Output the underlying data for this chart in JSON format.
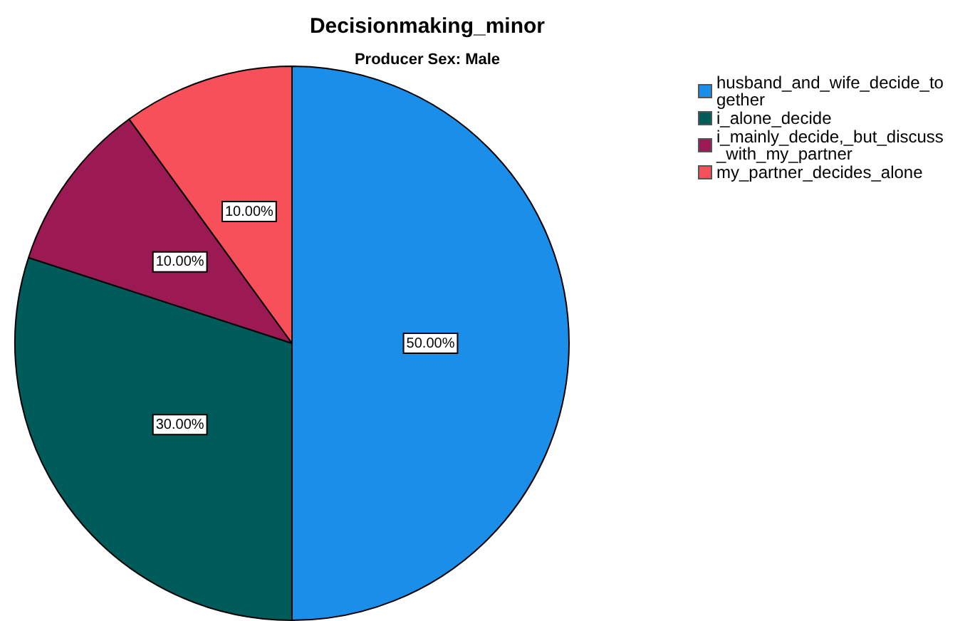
{
  "chart_data": {
    "type": "pie",
    "title": "Decisionmaking_minor",
    "subtitle": "Producer Sex: Male",
    "categories": [
      "husband_and_wife_decide_together",
      "i_alone_decide",
      "i_mainly_decide,_but_discuss_with_my_partner",
      "my_partner_decides_alone"
    ],
    "values": [
      50,
      30,
      10,
      10
    ],
    "colors": [
      "#1a8ee8",
      "#005b5b",
      "#9c1a54",
      "#f7505a"
    ],
    "value_labels": [
      "50.00%",
      "30.00%",
      "10.00%",
      "10.00%"
    ],
    "legend": "top right"
  }
}
